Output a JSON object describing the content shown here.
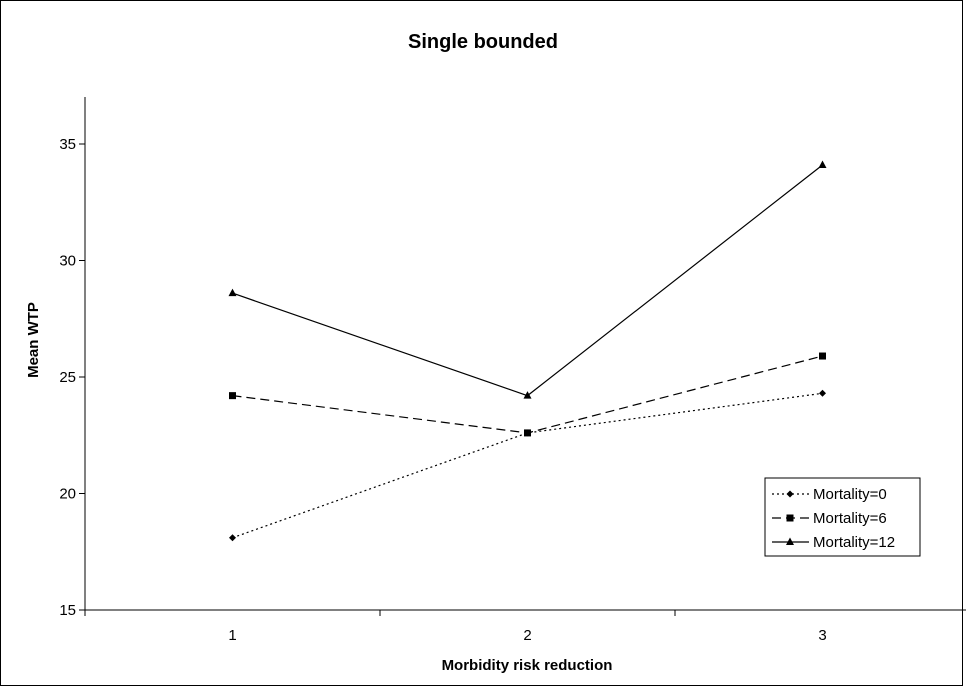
{
  "chart_data": {
    "type": "line",
    "title": "Single bounded",
    "xlabel": "Morbidity risk reduction",
    "ylabel": "Mean WTP",
    "categories": [
      "1",
      "2",
      "3"
    ],
    "ylim": [
      15,
      37
    ],
    "yticks": [
      15,
      20,
      25,
      30,
      35
    ],
    "grid": false,
    "legend_position": "bottom-right",
    "series": [
      {
        "name": "Mortality=0",
        "values": [
          18.1,
          22.6,
          24.3
        ],
        "line_style": "dotted",
        "marker": "diamond",
        "color": "#000000"
      },
      {
        "name": "Mortality=6",
        "values": [
          24.2,
          22.6,
          25.9
        ],
        "line_style": "dashed",
        "marker": "square",
        "color": "#000000"
      },
      {
        "name": "Mortality=12",
        "values": [
          28.6,
          24.2,
          34.1
        ],
        "line_style": "solid",
        "marker": "triangle",
        "color": "#000000"
      }
    ]
  }
}
